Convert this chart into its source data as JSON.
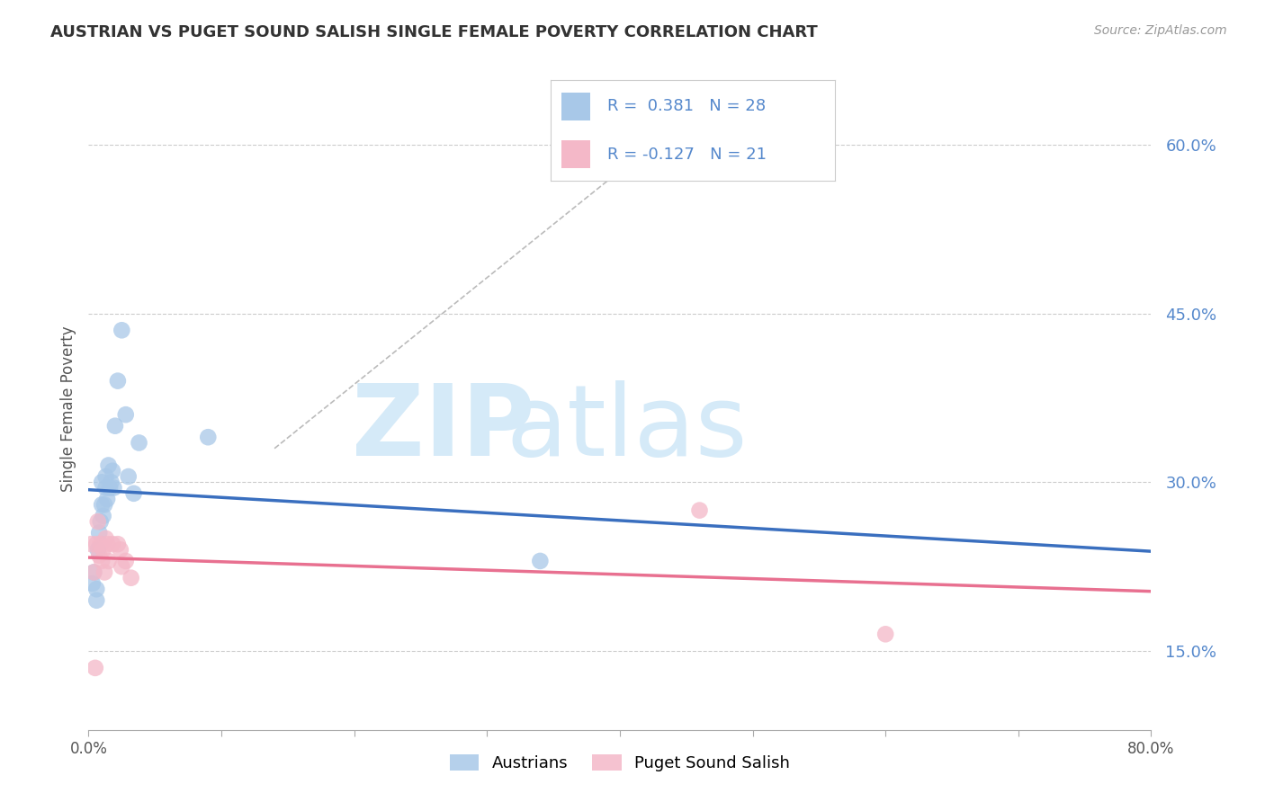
{
  "title": "AUSTRIAN VS PUGET SOUND SALISH SINGLE FEMALE POVERTY CORRELATION CHART",
  "source": "Source: ZipAtlas.com",
  "ylabel": "Single Female Poverty",
  "xlim": [
    0.0,
    0.8
  ],
  "ylim": [
    0.08,
    0.65
  ],
  "xticks": [
    0.0,
    0.1,
    0.2,
    0.3,
    0.4,
    0.5,
    0.6,
    0.7,
    0.8
  ],
  "xticklabels": [
    "0.0%",
    "",
    "",
    "",
    "",
    "",
    "",
    "",
    "80.0%"
  ],
  "yticks": [
    0.15,
    0.3,
    0.45,
    0.6
  ],
  "yticklabels": [
    "15.0%",
    "30.0%",
    "45.0%",
    "60.0%"
  ],
  "austrians_R": 0.381,
  "austrians_N": 28,
  "puget_R": -0.127,
  "puget_N": 21,
  "austrians_color": "#a8c8e8",
  "puget_color": "#f4b8c8",
  "austrians_line_color": "#3a6fbf",
  "puget_line_color": "#e87090",
  "ytick_color": "#5588cc",
  "trend_line_color": "#bbbbbb",
  "austrians_x": [
    0.003,
    0.004,
    0.006,
    0.006,
    0.007,
    0.008,
    0.009,
    0.01,
    0.01,
    0.011,
    0.012,
    0.013,
    0.013,
    0.014,
    0.015,
    0.016,
    0.017,
    0.018,
    0.019,
    0.02,
    0.022,
    0.025,
    0.028,
    0.03,
    0.034,
    0.038,
    0.09,
    0.34
  ],
  "austrians_y": [
    0.21,
    0.22,
    0.195,
    0.205,
    0.24,
    0.255,
    0.265,
    0.28,
    0.3,
    0.27,
    0.28,
    0.295,
    0.305,
    0.285,
    0.315,
    0.295,
    0.3,
    0.31,
    0.295,
    0.35,
    0.39,
    0.435,
    0.36,
    0.305,
    0.29,
    0.335,
    0.34,
    0.23
  ],
  "puget_x": [
    0.002,
    0.004,
    0.005,
    0.006,
    0.007,
    0.008,
    0.009,
    0.01,
    0.011,
    0.012,
    0.013,
    0.014,
    0.015,
    0.018,
    0.022,
    0.024,
    0.025,
    0.028,
    0.032,
    0.46,
    0.6
  ],
  "puget_y": [
    0.245,
    0.22,
    0.135,
    0.245,
    0.265,
    0.235,
    0.245,
    0.23,
    0.24,
    0.22,
    0.25,
    0.245,
    0.23,
    0.245,
    0.245,
    0.24,
    0.225,
    0.23,
    0.215,
    0.275,
    0.165
  ],
  "background_color": "#ffffff",
  "grid_color": "#cccccc",
  "watermark_zip": "ZIP",
  "watermark_atlas": "atlas",
  "watermark_color": "#d5eaf8"
}
